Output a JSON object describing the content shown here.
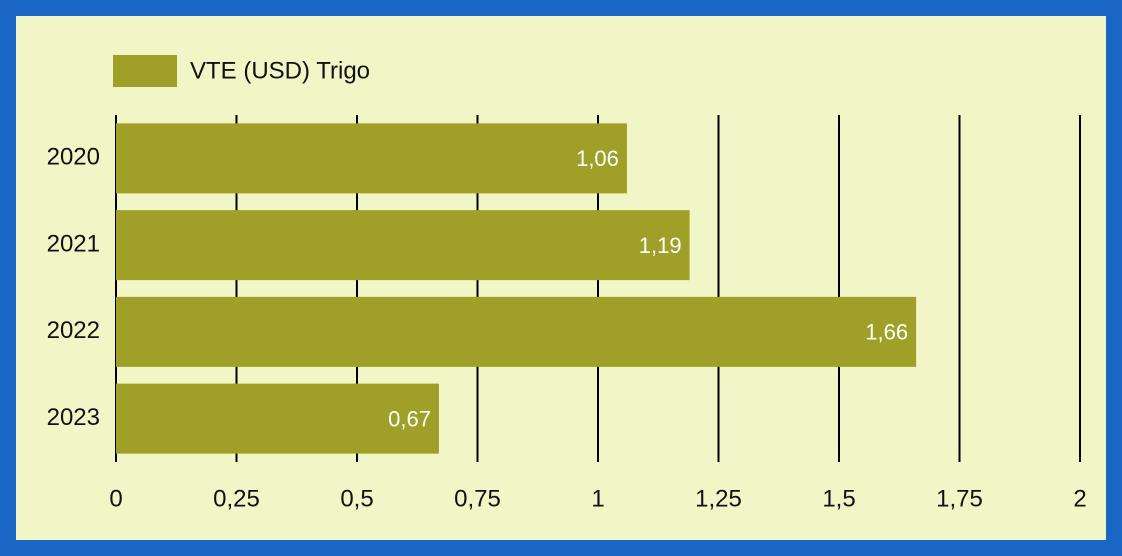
{
  "chart_data": {
    "type": "bar",
    "orientation": "horizontal",
    "categories": [
      "2020",
      "2021",
      "2022",
      "2023"
    ],
    "series": [
      {
        "name": "VTE (USD) Trigo",
        "color": "#a09f28",
        "values": [
          1.06,
          1.19,
          1.66,
          0.67
        ],
        "value_labels": [
          "1,06",
          "1,19",
          "1,66",
          "0,67"
        ]
      }
    ],
    "xlim": [
      0,
      2
    ],
    "xticks": [
      0,
      {
        "value": 0.25,
        "label": "0,25"
      },
      {
        "value": 0.5,
        "label": "0,5"
      },
      {
        "value": 0.75,
        "label": "0,75"
      },
      1,
      {
        "value": 1.25,
        "label": "1,25"
      },
      {
        "value": 1.5,
        "label": "1,5"
      },
      {
        "value": 1.75,
        "label": "1,75"
      },
      2
    ],
    "grid": true,
    "legend": "top-left"
  }
}
